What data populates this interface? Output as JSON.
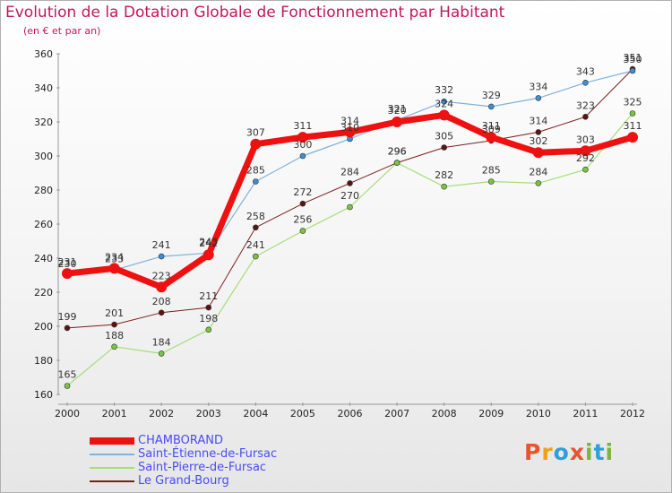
{
  "title": "Evolution de la Dotation Globale de Fonctionnement par Habitant",
  "subtitle": "(en € et par an)",
  "brand": {
    "letters": [
      "P",
      "r",
      "o",
      "x",
      "i",
      "t",
      "i"
    ],
    "colors": [
      "#e8542f",
      "#f0a30a",
      "#2f9fd8",
      "#e8542f",
      "#7cb342",
      "#2f9fd8",
      "#7cb342"
    ]
  },
  "chart_data": {
    "type": "line",
    "title": "Evolution de la Dotation Globale de Fonctionnement par Habitant",
    "ylabel": "(en € et par an)",
    "categories": [
      "2000",
      "2001",
      "2002",
      "2003",
      "2004",
      "2005",
      "2006",
      "2007",
      "2008",
      "2009",
      "2010",
      "2011",
      "2012"
    ],
    "ylim": [
      160,
      360
    ],
    "yticks": [
      160,
      180,
      200,
      220,
      240,
      260,
      280,
      300,
      320,
      340,
      360
    ],
    "grid": false,
    "legend_position": "bottom-left",
    "series": [
      {
        "name": "Le Grand-Bourg",
        "color": "#7a1f1f",
        "marker": "#5a1414",
        "width": 1,
        "values": [
          199,
          201,
          208,
          211,
          258,
          272,
          284,
          296,
          305,
          309,
          314,
          323,
          351
        ]
      },
      {
        "name": "Saint-Pierre-de-Fursac",
        "color": "#a6dd7a",
        "marker": "#7cc443",
        "width": 1.2,
        "values": [
          165,
          188,
          184,
          198,
          241,
          256,
          270,
          296,
          282,
          285,
          284,
          292,
          325
        ]
      },
      {
        "name": "Saint-Étienne-de-Fursac",
        "color": "#7fb2dd",
        "marker": "#3f8fd0",
        "width": 1.2,
        "values": [
          230,
          233,
          241,
          243,
          285,
          300,
          310,
          321,
          332,
          329,
          334,
          343,
          350
        ]
      },
      {
        "name": "CHAMBORAND",
        "color": "#ee1111",
        "marker": "#ee1111",
        "width": 7,
        "values": [
          231,
          234,
          223,
          242,
          307,
          311,
          314,
          320,
          324,
          311,
          302,
          303,
          311
        ]
      }
    ],
    "legend_order": [
      "CHAMBORAND",
      "Saint-Étienne-de-Fursac",
      "Saint-Pierre-de-Fursac",
      "Le Grand-Bourg"
    ]
  }
}
